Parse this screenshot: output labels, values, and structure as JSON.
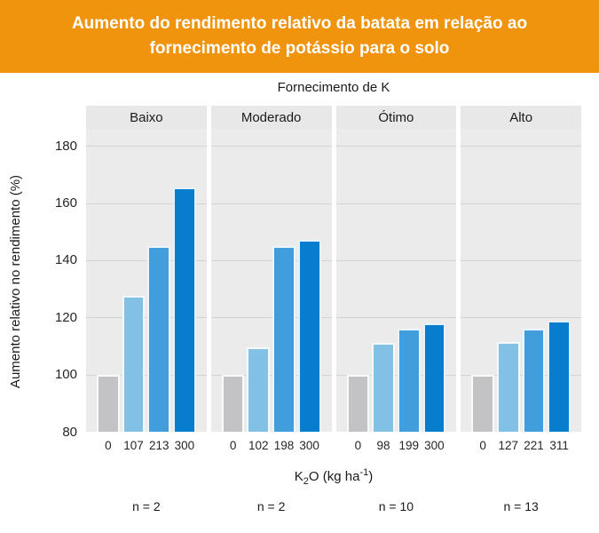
{
  "banner": {
    "lines": [
      "Aumento do rendimento relativo da batata em relação ao",
      "fornecimento de potássio para o solo"
    ],
    "bg_color": "#F0930D",
    "text_color": "#FFFFFF"
  },
  "chart_data": {
    "type": "bar",
    "facet_title": "Fornecimento de K",
    "ylabel": "Aumento relativo no rendimento (%)",
    "xlabel": {
      "prefix": "K",
      "subscript": "2",
      "middle": "O (kg ha",
      "superscript": "-1",
      "suffix": ")"
    },
    "y_ticks": [
      80,
      100,
      120,
      140,
      160,
      180
    ],
    "ylim": [
      80,
      186
    ],
    "grid": "major-horizontal",
    "bar_colors": [
      "#C3C3C5",
      "#82C0E5",
      "#419DDB",
      "#087DCE"
    ],
    "panel_bg": "#EBEBEB",
    "strip_bg": "#E8E8E8",
    "gridline_color": "#D4D4D4",
    "panels": [
      {
        "label": "Baixo",
        "x_ticks": [
          "0",
          "107",
          "213",
          "300"
        ],
        "values": [
          100,
          127.5,
          145,
          165.5
        ],
        "n_label": "n = 2"
      },
      {
        "label": "Moderado",
        "x_ticks": [
          "0",
          "102",
          "198",
          "300"
        ],
        "values": [
          100,
          109.5,
          145,
          147
        ],
        "n_label": "n = 2"
      },
      {
        "label": "Ótimo",
        "x_ticks": [
          "0",
          "98",
          "199",
          "300"
        ],
        "values": [
          100,
          111,
          116,
          118
        ],
        "n_label": "n = 10"
      },
      {
        "label": "Alto",
        "x_ticks": [
          "0",
          "127",
          "221",
          "311"
        ],
        "values": [
          100,
          111.5,
          116,
          119
        ],
        "n_label": "n = 13"
      }
    ]
  }
}
